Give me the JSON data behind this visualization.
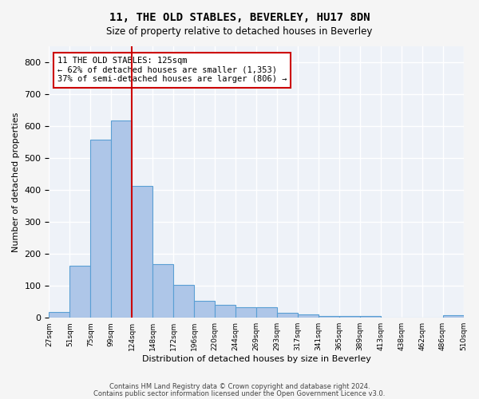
{
  "title": "11, THE OLD STABLES, BEVERLEY, HU17 8DN",
  "subtitle": "Size of property relative to detached houses in Beverley",
  "xlabel": "Distribution of detached houses by size in Beverley",
  "ylabel": "Number of detached properties",
  "bar_color": "#aec6e8",
  "bar_edge_color": "#5a9fd4",
  "background_color": "#eef2f8",
  "grid_color": "#ffffff",
  "property_line_color": "#cc0000",
  "annotation_text": "11 THE OLD STABLES: 125sqm\n← 62% of detached houses are smaller (1,353)\n37% of semi-detached houses are larger (806) →",
  "bin_labels": [
    "27sqm",
    "51sqm",
    "75sqm",
    "99sqm",
    "124sqm",
    "148sqm",
    "172sqm",
    "196sqm",
    "220sqm",
    "244sqm",
    "269sqm",
    "293sqm",
    "317sqm",
    "341sqm",
    "365sqm",
    "389sqm",
    "413sqm",
    "438sqm",
    "462sqm",
    "486sqm",
    "510sqm"
  ],
  "values": [
    18,
    163,
    558,
    617,
    412,
    168,
    103,
    52,
    40,
    32,
    32,
    15,
    10,
    6,
    5,
    5,
    0,
    0,
    0,
    8
  ],
  "ylim": [
    0,
    850
  ],
  "yticks": [
    0,
    100,
    200,
    300,
    400,
    500,
    600,
    700,
    800
  ],
  "footer_line1": "Contains HM Land Registry data © Crown copyright and database right 2024.",
  "footer_line2": "Contains public sector information licensed under the Open Government Licence v3.0."
}
